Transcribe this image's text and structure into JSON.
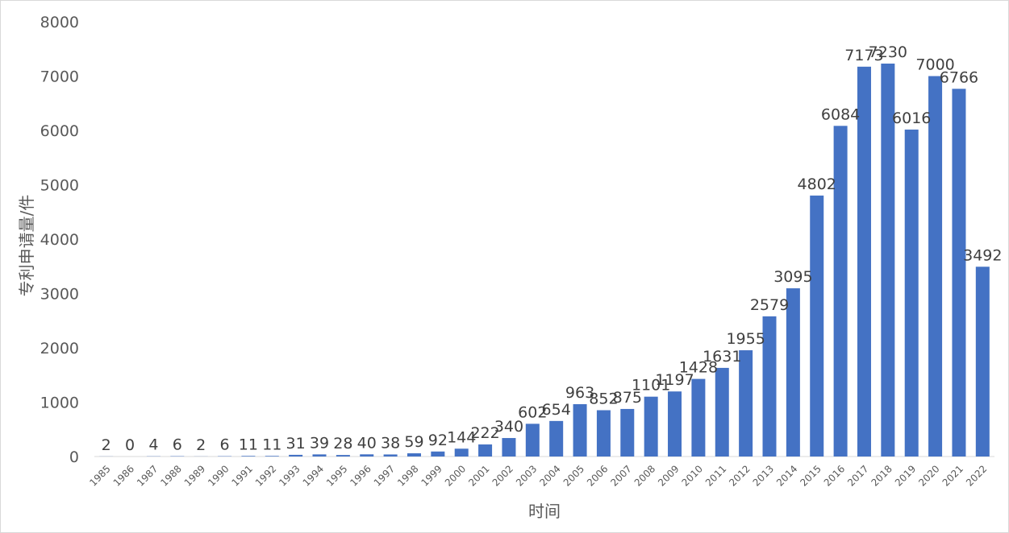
{
  "chart_data": {
    "type": "bar",
    "categories": [
      "1985",
      "1986",
      "1987",
      "1988",
      "1989",
      "1990",
      "1991",
      "1992",
      "1993",
      "1994",
      "1995",
      "1996",
      "1997",
      "1998",
      "1999",
      "2000",
      "2001",
      "2002",
      "2003",
      "2004",
      "2005",
      "2006",
      "2007",
      "2008",
      "2009",
      "2010",
      "2011",
      "2012",
      "2013",
      "2014",
      "2015",
      "2016",
      "2017",
      "2018",
      "2019",
      "2020",
      "2021",
      "2022"
    ],
    "values": [
      2,
      0,
      4,
      6,
      2,
      6,
      11,
      11,
      31,
      39,
      28,
      40,
      38,
      59,
      92,
      144,
      222,
      340,
      602,
      654,
      963,
      852,
      875,
      1101,
      1197,
      1428,
      1631,
      1955,
      2579,
      3095,
      4802,
      6084,
      7173,
      7230,
      6016,
      7000,
      6766,
      3492
    ],
    "data_labels": [
      "2",
      "0",
      "4",
      "6",
      "2",
      "6",
      "11",
      "11",
      "31",
      "39",
      "28",
      "40",
      "38",
      "59",
      "92",
      "144",
      "222",
      "340",
      "602",
      "654",
      "963",
      "852",
      "875",
      "1101",
      "1197",
      "1428",
      "1631",
      "1955",
      "2579",
      "3095",
      "4802",
      "6084",
      "7173",
      "7230",
      "6016",
      "7000",
      "6766",
      "3492"
    ],
    "xlabel": "时间",
    "ylabel": "专利申请量/件",
    "ylim": [
      0,
      8000
    ],
    "yticks": [
      0,
      1000,
      2000,
      3000,
      4000,
      5000,
      6000,
      7000,
      8000
    ],
    "ytick_labels": [
      "0",
      "1000",
      "2000",
      "3000",
      "4000",
      "5000",
      "6000",
      "7000",
      "8000"
    ],
    "grid": false,
    "legend": "none",
    "bar_color": "#4472c4"
  }
}
